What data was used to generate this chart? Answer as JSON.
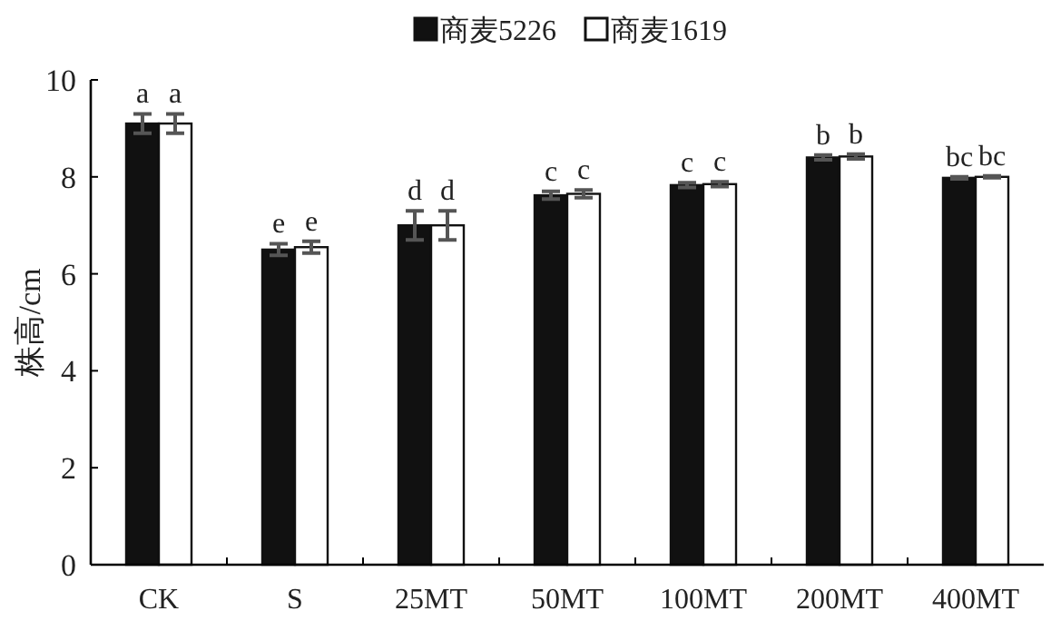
{
  "chart_data": {
    "type": "bar",
    "ylabel": "株高/cm",
    "categories": [
      "CK",
      "S",
      "25MT",
      "50MT",
      "100MT",
      "200MT",
      "400MT"
    ],
    "series": [
      {
        "name": "商麦5226",
        "color": "#111111",
        "values": [
          9.1,
          6.5,
          7.0,
          7.62,
          7.83,
          8.4,
          7.98
        ],
        "errors": [
          0.2,
          0.12,
          0.3,
          0.08,
          0.05,
          0.05,
          0.02
        ]
      },
      {
        "name": "商麦1619",
        "color": "#ffffff",
        "values": [
          9.1,
          6.55,
          7.0,
          7.65,
          7.85,
          8.42,
          8.0
        ],
        "errors": [
          0.2,
          0.12,
          0.3,
          0.08,
          0.05,
          0.05,
          0.02
        ]
      }
    ],
    "ylim": [
      0,
      10
    ],
    "yticks": [
      0,
      2,
      4,
      6,
      8,
      10
    ],
    "legend": "top",
    "grid": false,
    "annotations": [
      {
        "text": "a",
        "x": "CK",
        "y": 9.3
      },
      {
        "text": "a",
        "x": "CK",
        "y": 9.3
      },
      {
        "text": "e",
        "x": "S",
        "y": 6.62
      },
      {
        "text": "e",
        "x": "S",
        "y": 6.67
      },
      {
        "text": "d",
        "x": "25MT",
        "y": 7.3
      },
      {
        "text": "d",
        "x": "25MT",
        "y": 7.3
      },
      {
        "text": "c",
        "x": "50MT",
        "y": 7.7
      },
      {
        "text": "c",
        "x": "50MT",
        "y": 7.73
      },
      {
        "text": "c",
        "x": "100MT",
        "y": 7.88
      },
      {
        "text": "c",
        "x": "100MT",
        "y": 7.9
      },
      {
        "text": "b",
        "x": "200MT",
        "y": 8.45
      },
      {
        "text": "b",
        "x": "200MT",
        "y": 8.47
      },
      {
        "text": "bc",
        "x": "400MT",
        "y": 8.0
      },
      {
        "text": "bc",
        "x": "400MT",
        "y": 8.02
      }
    ]
  }
}
